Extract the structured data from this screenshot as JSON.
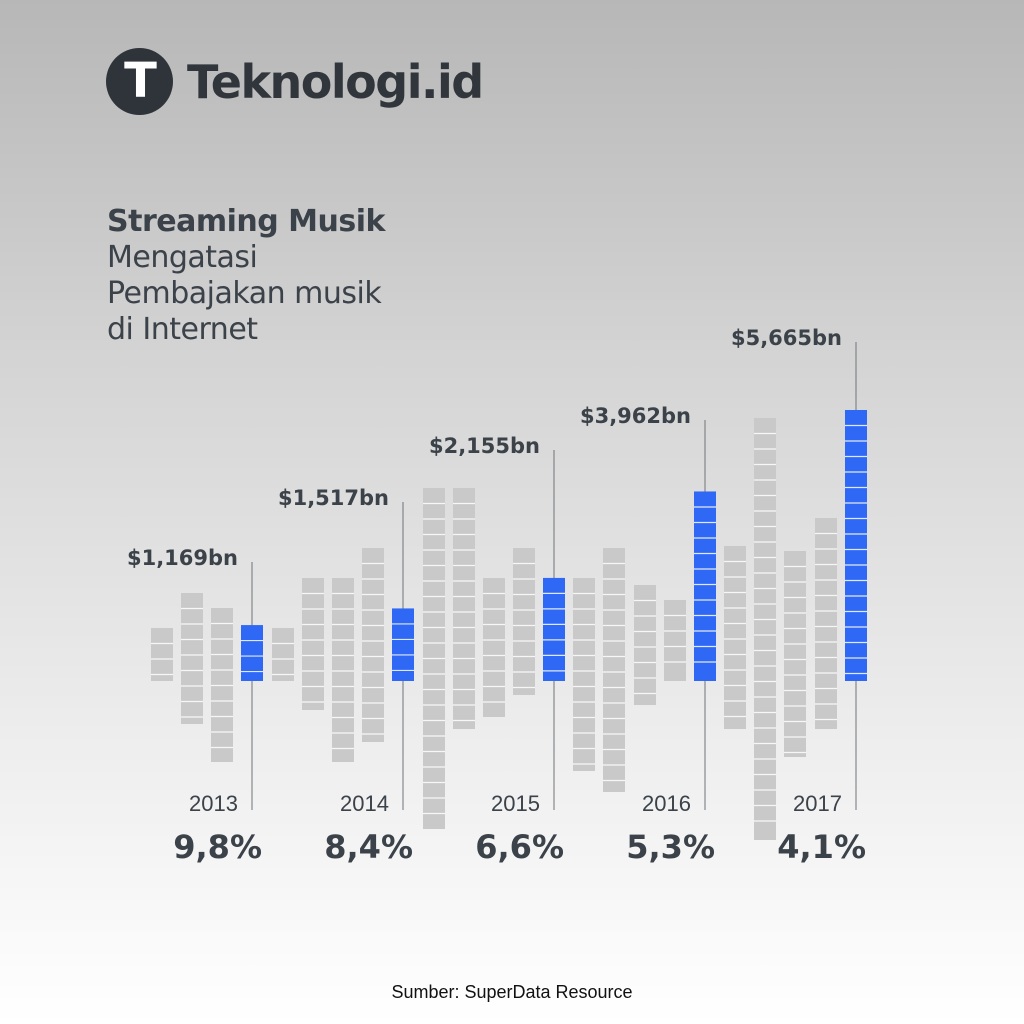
{
  "brand": {
    "logo_letter": "T",
    "name": "Teknologi.id"
  },
  "heading": {
    "bold": "Streaming Musik",
    "lines": [
      "Mengatasi",
      "Pembajakan musik",
      "di Internet"
    ]
  },
  "source": "Sumber: SuperData Resource",
  "colors": {
    "accent": "#2f68f5",
    "bar": "#c9c9c9",
    "text": "#3b4249"
  },
  "chart_data": {
    "type": "bar",
    "categories": [
      "2013",
      "2014",
      "2015",
      "2016",
      "2017"
    ],
    "values": [
      1169,
      1517,
      2155,
      3962,
      5665
    ],
    "value_labels": [
      "$1,169bn",
      "$1,517bn",
      "$2,155bn",
      "$3,962bn",
      "$5,665bn"
    ],
    "percent_labels": [
      "9,8%",
      "8,4%",
      "6,6%",
      "5,3%",
      "4,1%"
    ],
    "ylim": [
      0,
      5665
    ],
    "grid": false,
    "legend": "none"
  }
}
